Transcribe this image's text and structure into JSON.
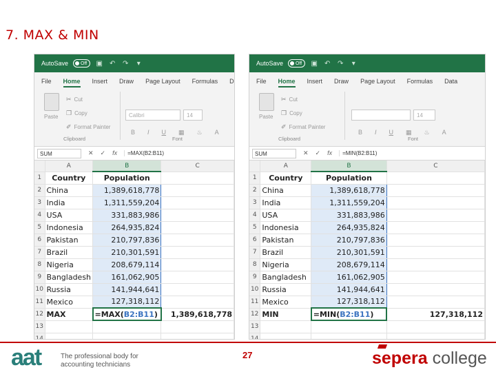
{
  "slide": {
    "title": "7. MAX & MIN",
    "page_number": "27",
    "footer_left_logo": "aat",
    "footer_left_tagline_1": "The professional body for",
    "footer_left_tagline_2": "accounting technicians",
    "footer_right_logo_a": "sepera",
    "footer_right_logo_b": " college",
    "accent_color": "#c00000",
    "excel_green": "#217346"
  },
  "excel_common": {
    "autosave": "AutoSave",
    "toggle_off": "Off",
    "menu": [
      "File",
      "Home",
      "Insert",
      "Draw",
      "Page Layout",
      "Formulas",
      "Data"
    ],
    "cut": "Cut",
    "copy": "Copy",
    "format_painter": "Format Painter",
    "paste": "Paste",
    "clipboard_group": "Clipboard",
    "font_group": "Font",
    "font_name": "Calibri",
    "font_size": "14",
    "name_box": "SUM",
    "col_headers": [
      "A",
      "B",
      "C"
    ],
    "header_country": "Country",
    "header_population": "Population",
    "rows": [
      {
        "n": "2",
        "country": "China",
        "pop": "1,389,618,778"
      },
      {
        "n": "3",
        "country": "India",
        "pop": "1,311,559,204"
      },
      {
        "n": "4",
        "country": "USA",
        "pop": "331,883,986"
      },
      {
        "n": "5",
        "country": "Indonesia",
        "pop": "264,935,824"
      },
      {
        "n": "6",
        "country": "Pakistan",
        "pop": "210,797,836"
      },
      {
        "n": "7",
        "country": "Brazil",
        "pop": "210,301,591"
      },
      {
        "n": "8",
        "country": "Nigeria",
        "pop": "208,679,114"
      },
      {
        "n": "9",
        "country": "Bangladesh",
        "pop": "161,062,905"
      },
      {
        "n": "10",
        "country": "Russia",
        "pop": "141,944,641"
      },
      {
        "n": "11",
        "country": "Mexico",
        "pop": "127,318,112"
      }
    ]
  },
  "left": {
    "formula_bar": "=MAX(B2:B11)",
    "label": "MAX",
    "formula_prefix": "=MAX(",
    "formula_range": "B2:B11",
    "formula_suffix": ")",
    "result": "1,389,618,778"
  },
  "right": {
    "formula_bar": "=MIN(B2:B11)",
    "label": "MIN",
    "formula_prefix": "=MIN(",
    "formula_range": "B2:B11",
    "formula_suffix": ")",
    "result": "127,318,112"
  }
}
